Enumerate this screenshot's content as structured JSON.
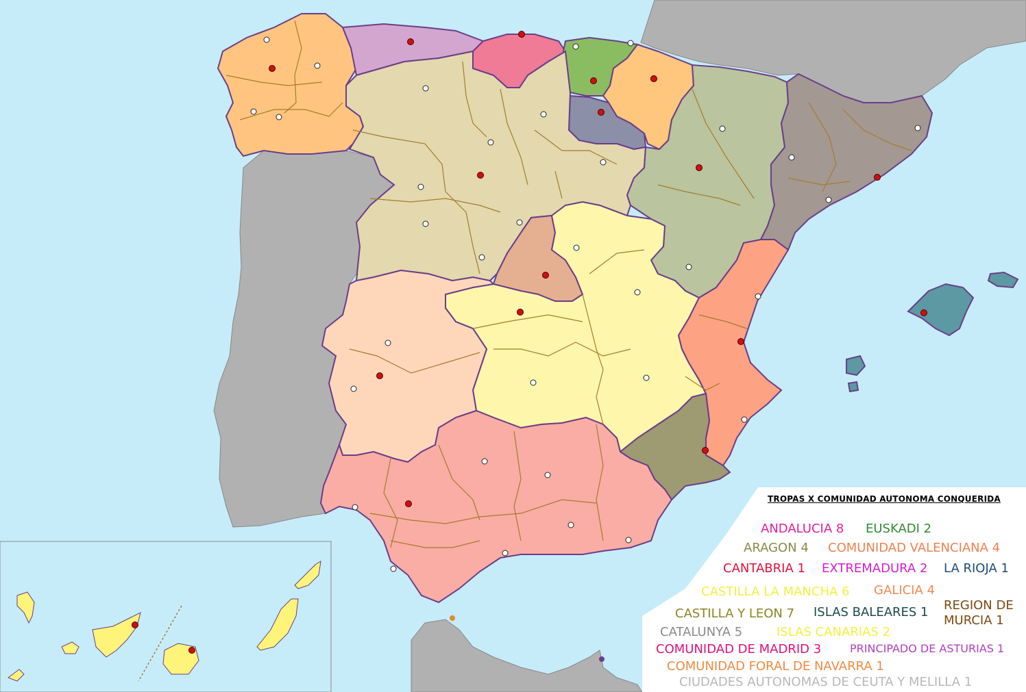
{
  "legend": {
    "title": "TROPAS X COMUNIDAD AUTONOMA CONQUERIDA",
    "entries": [
      {
        "label": "ANDALUCIA 8",
        "color": "#e0209c"
      },
      {
        "label": "EUSKADI 2",
        "color": "#2e8b2e"
      },
      {
        "label": "ARAGON 4",
        "color": "#8a8a4a"
      },
      {
        "label": "COMUNIDAD VALENCIANA 4",
        "color": "#f08050"
      },
      {
        "label": "CANTABRIA 1",
        "color": "#e0103a"
      },
      {
        "label": "EXTREMADURA 2",
        "color": "#d020d0"
      },
      {
        "label": "LA RIOJA 1",
        "color": "#1a4a7a"
      },
      {
        "label": "CASTILLA LA MANCHA 6",
        "color": "#f2f040"
      },
      {
        "label": "GALICIA 4",
        "color": "#f08a50"
      },
      {
        "label": "CASTILLA Y LEON 7",
        "color": "#8a8420"
      },
      {
        "label": "ISLAS BALEARES 1",
        "color": "#1a4a4a"
      },
      {
        "label": "REGION DE",
        "color": "#7a4a10"
      },
      {
        "label": "MURCIA 1",
        "color": "#7a4a10"
      },
      {
        "label": "CATALUNYA 5",
        "color": "#8a8a8a"
      },
      {
        "label": "ISLAS CANARIAS 2",
        "color": "#f2f040"
      },
      {
        "label": "COMUNIDAD DE MADRID 3",
        "color": "#e0107a"
      },
      {
        "label": "PRINCIPADO DE ASTURIAS 1",
        "color": "#b040c0"
      },
      {
        "label": "COMUNIDAD FORAL DE NAVARRA 1",
        "color": "#f08a40"
      },
      {
        "label": "CIUDADES AUTONOMAS DE CEUTA Y MELILLA 1",
        "color": "#b8b8b8"
      }
    ]
  },
  "regions": [
    {
      "name": "Galicia",
      "color": "#ffc580"
    },
    {
      "name": "Asturias",
      "color": "#d3a6cf"
    },
    {
      "name": "Cantabria",
      "color": "#ef7b96"
    },
    {
      "name": "Euskadi",
      "color": "#8abd61"
    },
    {
      "name": "Navarra",
      "color": "#ffc67e"
    },
    {
      "name": "La Rioja",
      "color": "#8b8fa8"
    },
    {
      "name": "Castilla y Leon",
      "color": "#e3d8ae"
    },
    {
      "name": "Aragon",
      "color": "#bac49e"
    },
    {
      "name": "Catalunya",
      "color": "#a39892"
    },
    {
      "name": "Madrid",
      "color": "#e5b092"
    },
    {
      "name": "Castilla La Mancha",
      "color": "#fdf6ab"
    },
    {
      "name": "Extremadura",
      "color": "#fed7bb"
    },
    {
      "name": "Comunidad Valenciana",
      "color": "#fda282"
    },
    {
      "name": "Murcia",
      "color": "#9e9a72"
    },
    {
      "name": "Andalucia",
      "color": "#f9ada4"
    },
    {
      "name": "Islas Baleares",
      "color": "#5c99a3"
    },
    {
      "name": "Islas Canarias",
      "color": "#fef47a"
    },
    {
      "name": "Portugal",
      "color": "#b1b1b1"
    },
    {
      "name": "France",
      "color": "#b1b1b1"
    },
    {
      "name": "Morocco",
      "color": "#b1b1b1"
    }
  ],
  "colors": {
    "sea": "#c6ecfa",
    "capital_marker": "#d01010",
    "city_marker": "#ffffff"
  }
}
